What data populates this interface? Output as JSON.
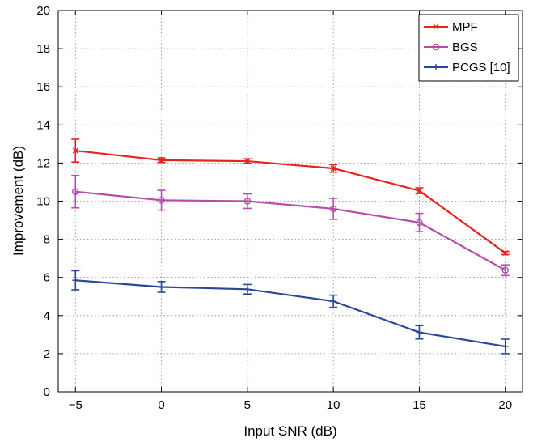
{
  "chart_data": {
    "type": "line",
    "title": "",
    "xlabel": "Input SNR (dB)",
    "ylabel": "Improvement (dB)",
    "xlim": [
      -6,
      21
    ],
    "ylim": [
      0,
      20
    ],
    "x": [
      -5,
      0,
      5,
      10,
      15,
      20
    ],
    "xticks": [
      -5,
      0,
      5,
      10,
      15,
      20
    ],
    "xtick_labels": [
      "−5",
      "0",
      "5",
      "10",
      "15",
      "20"
    ],
    "yticks": [
      0,
      2,
      4,
      6,
      8,
      10,
      12,
      14,
      16,
      18,
      20
    ],
    "ytick_labels": [
      "0",
      "2",
      "4",
      "6",
      "8",
      "10",
      "12",
      "14",
      "16",
      "18",
      "20"
    ],
    "grid": true,
    "legend_position": "top-right",
    "series": [
      {
        "name": "MPF",
        "color": "#e8221f",
        "marker": "x",
        "values": [
          12.65,
          12.15,
          12.1,
          11.72,
          10.55,
          7.28
        ],
        "errors": [
          0.6,
          0.12,
          0.12,
          0.2,
          0.15,
          0.08
        ]
      },
      {
        "name": "BGS",
        "color": "#b64ea8",
        "marker": "circle",
        "values": [
          10.5,
          10.05,
          10.0,
          9.6,
          8.88,
          6.38
        ],
        "errors": [
          0.85,
          0.52,
          0.38,
          0.55,
          0.48,
          0.28
        ]
      },
      {
        "name": "PCGS [10]",
        "color": "#2b4799",
        "marker": "plus",
        "values": [
          5.85,
          5.5,
          5.38,
          4.75,
          3.12,
          2.38
        ],
        "errors": [
          0.5,
          0.28,
          0.25,
          0.32,
          0.35,
          0.38
        ]
      }
    ]
  }
}
